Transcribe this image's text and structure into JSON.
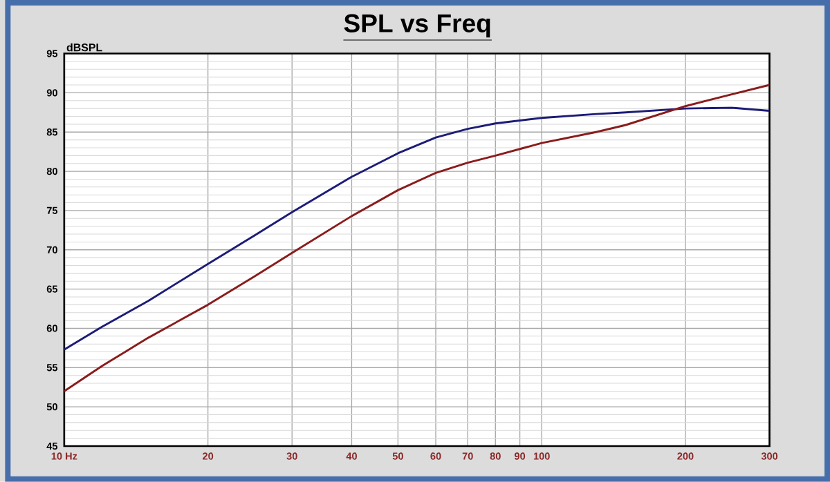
{
  "chart_data": {
    "type": "line",
    "title": "**SPL vs Freq**",
    "ylabel": "dBSPL",
    "log": "x",
    "grid": true,
    "marker": "none",
    "line_style": "solid",
    "xlim": [
      10,
      300
    ],
    "ylim": [
      45,
      95
    ],
    "xticks": [
      {
        "value": 10,
        "label": "10 Hz"
      },
      20,
      30,
      40,
      50,
      60,
      70,
      80,
      90,
      100,
      200,
      300
    ],
    "yticks": [
      45,
      50,
      55,
      60,
      65,
      70,
      75,
      80,
      85,
      90,
      95
    ],
    "x": [
      10,
      12,
      15,
      20,
      25,
      30,
      40,
      50,
      60,
      70,
      80,
      100,
      130,
      150,
      200,
      250,
      300
    ],
    "series": [
      {
        "color": "#1c1c78",
        "values": [
          57.3,
          60.2,
          63.5,
          68.2,
          71.8,
          74.8,
          79.3,
          82.3,
          84.3,
          85.4,
          86.1,
          86.8,
          87.3,
          87.5,
          88.0,
          88.1,
          87.7
        ]
      },
      {
        "color": "#8a1c1c",
        "values": [
          52.0,
          55.2,
          58.8,
          63.0,
          66.6,
          69.6,
          74.3,
          77.6,
          79.8,
          81.1,
          82.0,
          83.6,
          85.0,
          85.9,
          88.3,
          89.8,
          91.0
        ]
      }
    ]
  }
}
